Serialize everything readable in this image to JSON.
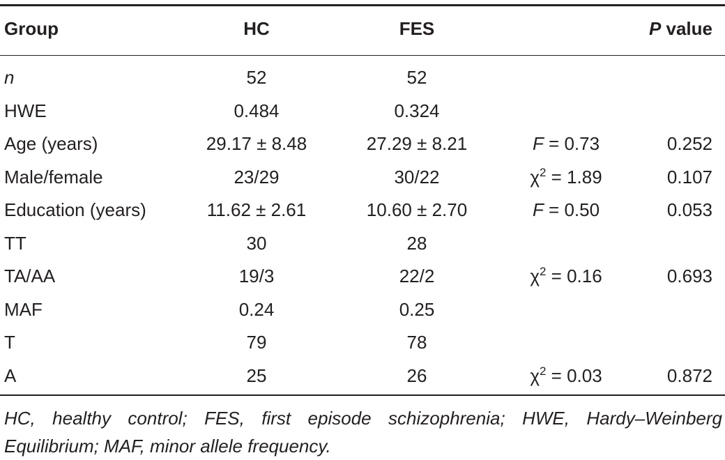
{
  "table": {
    "headers": {
      "group": "Group",
      "hc": "HC",
      "fes": "FES",
      "stat": "",
      "p_italic": "P",
      "p_rest": " value"
    },
    "rows": [
      {
        "group": "n",
        "group_italic": true,
        "hc": "52",
        "fes": "52",
        "stat_symbol": "",
        "stat_sup": "",
        "stat_value": "",
        "p": ""
      },
      {
        "group": "HWE",
        "hc": "0.484",
        "fes": "0.324",
        "stat_symbol": "",
        "stat_sup": "",
        "stat_value": "",
        "p": ""
      },
      {
        "group": "Age (years)",
        "hc": "29.17 ± 8.48",
        "fes": "27.29 ± 8.21",
        "stat_symbol": "F",
        "stat_sup": "",
        "stat_value": " = 0.73",
        "p": "0.252"
      },
      {
        "group": "Male/female",
        "hc": "23/29",
        "fes": "30/22",
        "stat_symbol": "χ",
        "stat_sup": "2",
        "stat_value": " = 1.89",
        "p": "0.107"
      },
      {
        "group": "Education (years)",
        "hc": "11.62 ± 2.61",
        "fes": "10.60 ± 2.70",
        "stat_symbol": "F",
        "stat_sup": "",
        "stat_value": " = 0.50",
        "p": "0.053"
      },
      {
        "group": "TT",
        "hc": "30",
        "fes": "28",
        "stat_symbol": "",
        "stat_sup": "",
        "stat_value": "",
        "p": ""
      },
      {
        "group": "TA/AA",
        "hc": "19/3",
        "fes": "22/2",
        "stat_symbol": "χ",
        "stat_sup": "2",
        "stat_value": " = 0.16",
        "p": "0.693"
      },
      {
        "group": "MAF",
        "hc": "0.24",
        "fes": "0.25",
        "stat_symbol": "",
        "stat_sup": "",
        "stat_value": "",
        "p": ""
      },
      {
        "group": "T",
        "hc": "79",
        "fes": "78",
        "stat_symbol": "",
        "stat_sup": "",
        "stat_value": "",
        "p": ""
      },
      {
        "group": "A",
        "hc": "25",
        "fes": "26",
        "stat_symbol": "χ",
        "stat_sup": "2",
        "stat_value": " = 0.03",
        "p": "0.872"
      }
    ],
    "footnote": "HC, healthy control; FES, first episode schizophrenia; HWE, Hardy–Weinberg Equilibrium; MAF, minor allele frequency."
  }
}
